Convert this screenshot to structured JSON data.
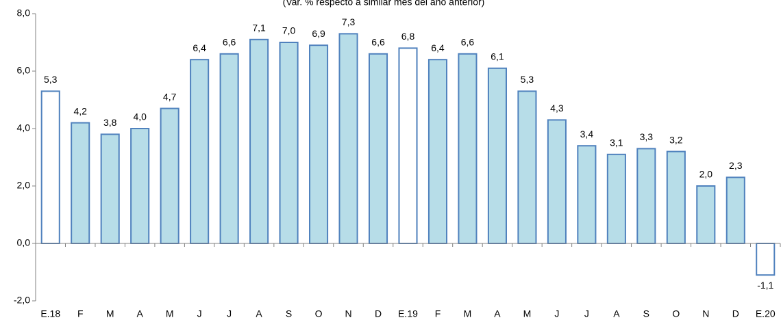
{
  "chart_data": {
    "type": "bar",
    "subtitle": "(Var. % respecto a similar mes del año anterior)",
    "categories": [
      "E.18",
      "F",
      "M",
      "A",
      "M",
      "J",
      "J",
      "A",
      "S",
      "O",
      "N",
      "D",
      "E.19",
      "F",
      "M",
      "A",
      "M",
      "J",
      "J",
      "A",
      "S",
      "O",
      "N",
      "D",
      "E.20"
    ],
    "values": [
      5.3,
      4.2,
      3.8,
      4.0,
      4.7,
      6.4,
      6.6,
      7.1,
      7.0,
      6.9,
      7.3,
      6.6,
      6.8,
      6.4,
      6.6,
      6.1,
      5.3,
      4.3,
      3.4,
      3.1,
      3.3,
      3.2,
      2.0,
      2.3,
      -1.1
    ],
    "value_labels": [
      "5,3",
      "4,2",
      "3,8",
      "4,0",
      "4,7",
      "6,4",
      "6,6",
      "7,1",
      "7,0",
      "6,9",
      "7,3",
      "6,6",
      "6,8",
      "6,4",
      "6,6",
      "6,1",
      "5,3",
      "4,3",
      "3,4",
      "3,1",
      "3,3",
      "3,2",
      "2,0",
      "2,3",
      "-1,1"
    ],
    "colors": [
      "#ffffff",
      "#b7dde8",
      "#b7dde8",
      "#b7dde8",
      "#b7dde8",
      "#b7dde8",
      "#b7dde8",
      "#b7dde8",
      "#b7dde8",
      "#b7dde8",
      "#b7dde8",
      "#b7dde8",
      "#ffffff",
      "#b7dde8",
      "#b7dde8",
      "#b7dde8",
      "#b7dde8",
      "#b7dde8",
      "#b7dde8",
      "#b7dde8",
      "#b7dde8",
      "#b7dde8",
      "#b7dde8",
      "#b7dde8",
      "#ffffff"
    ],
    "edge_color": "#4f81bd",
    "ylim": [
      -2,
      8
    ],
    "yticks": [
      {
        "value": -2,
        "label": "-2,0"
      },
      {
        "value": 0,
        "label": "0,0"
      },
      {
        "value": 2,
        "label": "2,0"
      },
      {
        "value": 4,
        "label": "4,0"
      },
      {
        "value": 6,
        "label": "6,0"
      },
      {
        "value": 8,
        "label": "8,0"
      }
    ],
    "grid": false
  }
}
